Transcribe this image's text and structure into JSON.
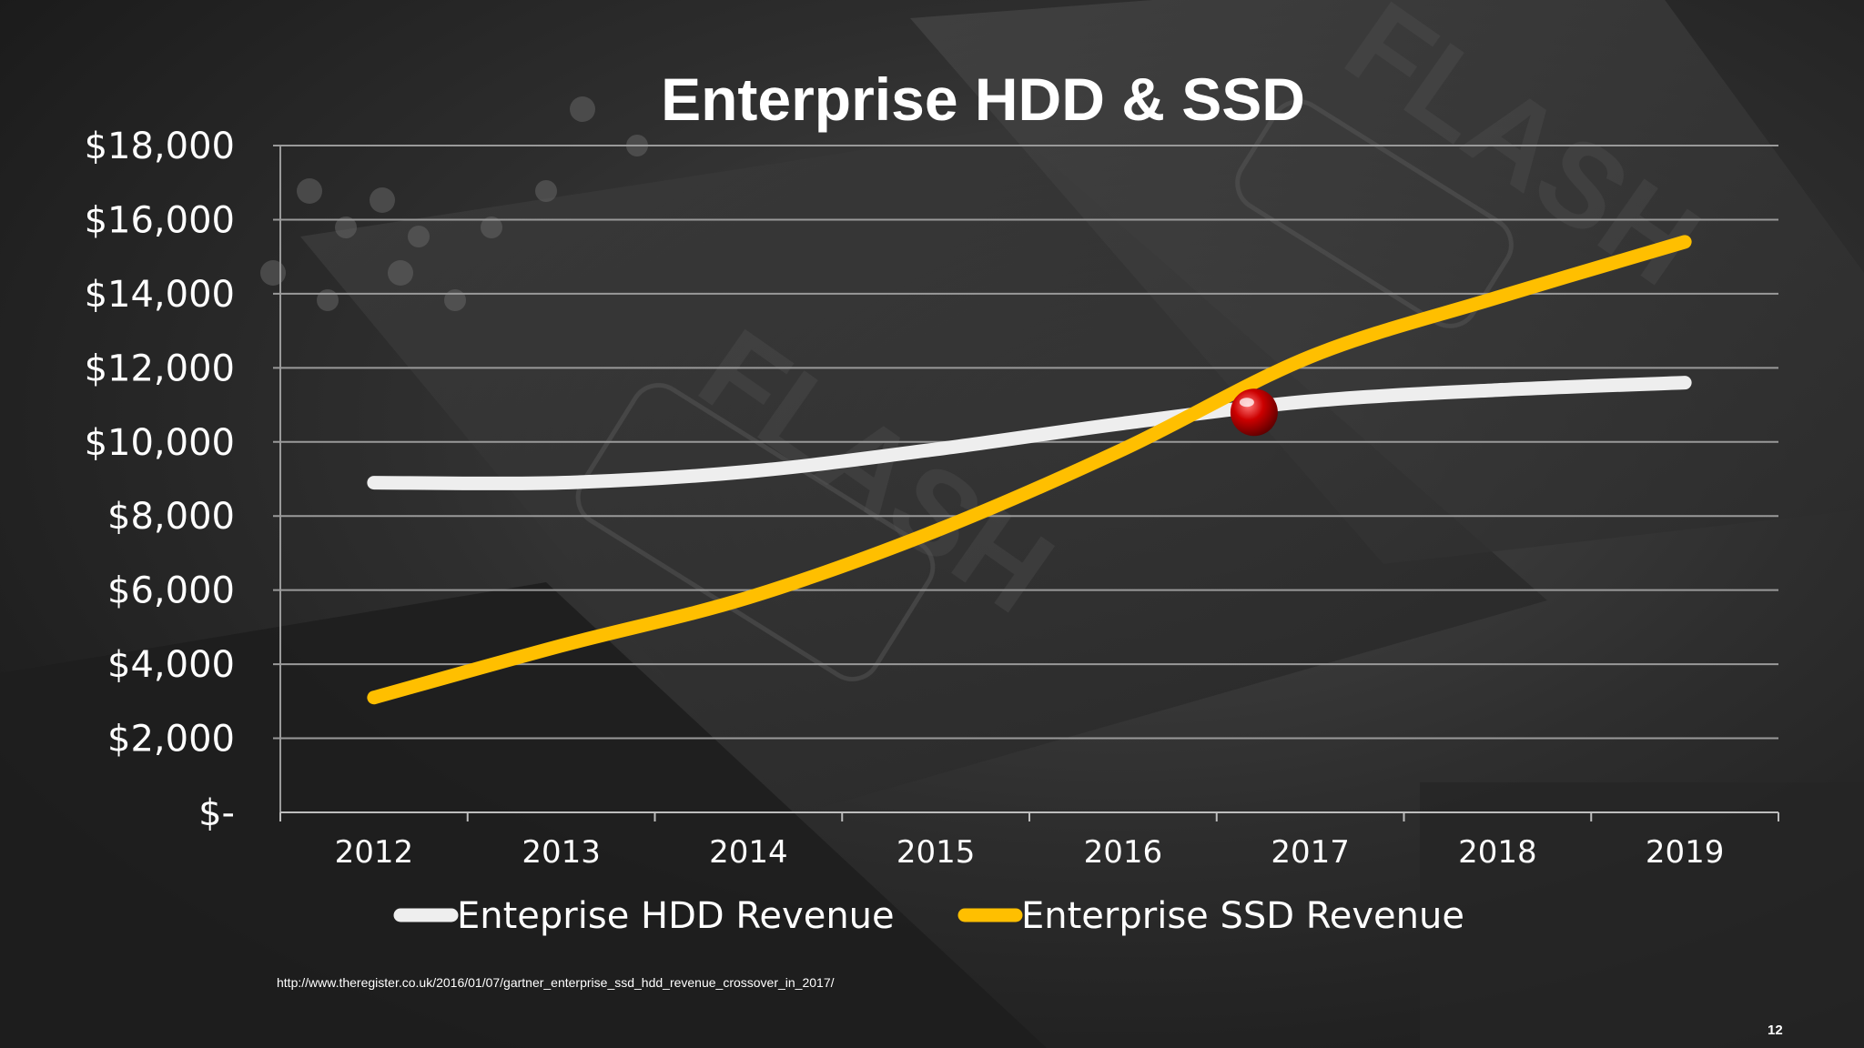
{
  "chart_data": {
    "type": "line",
    "title": "Enterprise HDD & SSD",
    "categories": [
      "2012",
      "2013",
      "2014",
      "2015",
      "2016",
      "2017",
      "2018",
      "2019"
    ],
    "series": [
      {
        "name": "Enteprise HDD Revenue",
        "color": "#eeeeee",
        "values": [
          8900,
          8900,
          9200,
          9800,
          10500,
          11100,
          11400,
          11600
        ]
      },
      {
        "name": "Enterprise SSD Revenue",
        "color": "#ffbf00",
        "values": [
          3100,
          4500,
          5800,
          7600,
          9800,
          12300,
          13900,
          15400
        ]
      }
    ],
    "ylim": [
      0,
      18000
    ],
    "yticks": [
      0,
      2000,
      4000,
      6000,
      8000,
      10000,
      12000,
      14000,
      16000,
      18000
    ],
    "ytick_labels": [
      "$-",
      "$2,000",
      "$4,000",
      "$6,000",
      "$8,000",
      "$10,000",
      "$12,000",
      "$14,000",
      "$16,000",
      "$18,000"
    ],
    "grid": true,
    "legend": "bottom",
    "crossover_marker": {
      "x_position": 4.7,
      "value": 10800,
      "color": "#cc0000"
    }
  },
  "footer": {
    "source_url": "http://www.theregister.co.uk/2016/01/07/gartner_enterprise_ssd_hdd_revenue_crossover_in_2017/",
    "page_number": "12"
  }
}
